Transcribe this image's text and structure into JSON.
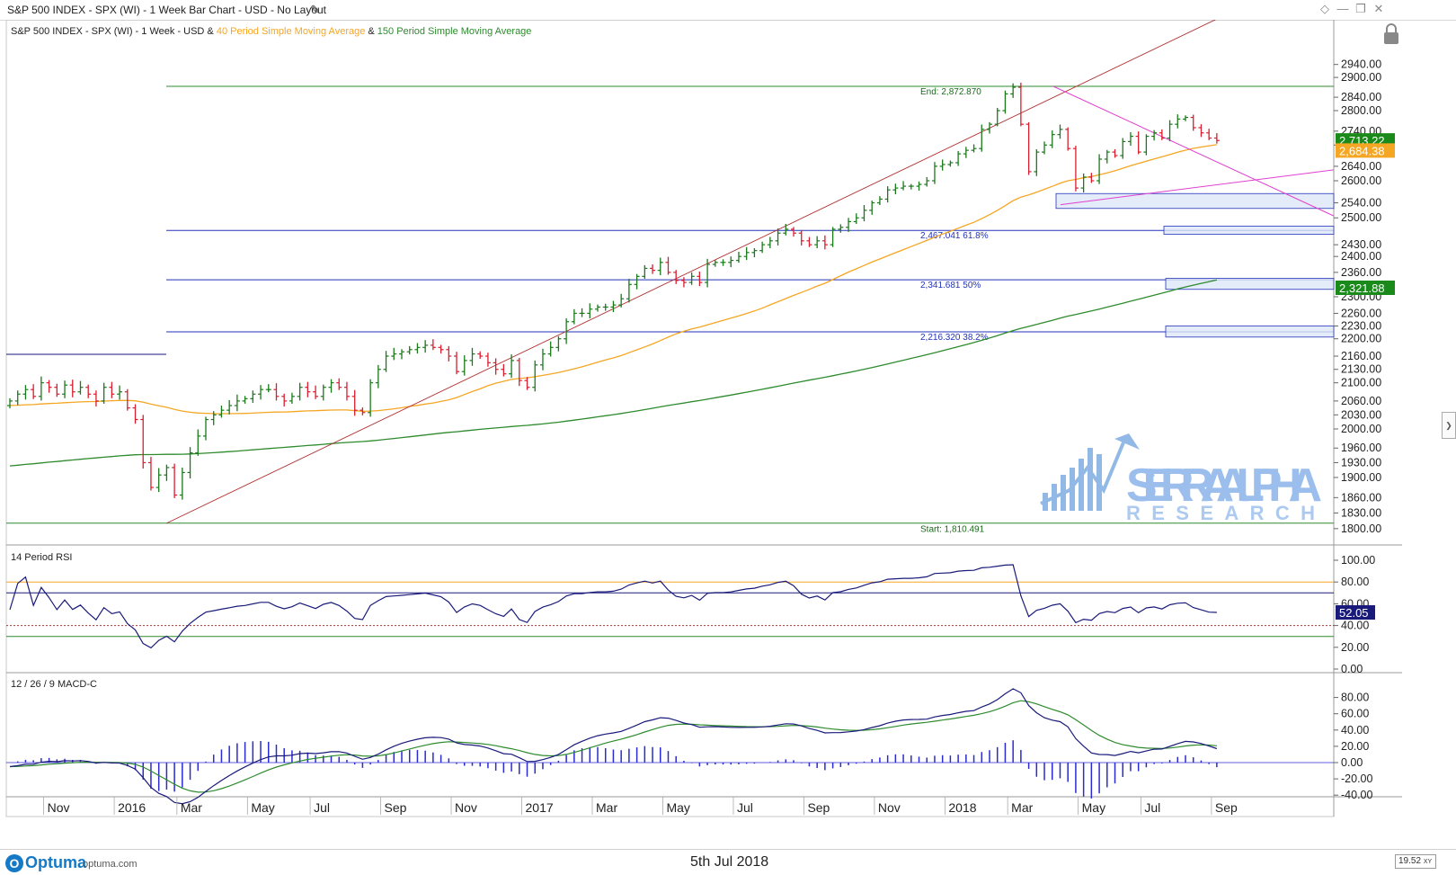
{
  "window": {
    "title": "S&P 500 INDEX - SPX (WI) - 1 Week Bar Chart - USD - No Layout",
    "footer_date": "5th Jul 2018",
    "logo_text": "Optuma",
    "logo_url": "optuma.com",
    "zoom": "19.52",
    "zoom_suffix": "XY"
  },
  "colors": {
    "up_bar": "#1a7a1a",
    "down_bar": "#d81e2e",
    "ma40": "#f5a623",
    "ma150": "#2e8b2e",
    "fib": "#2233bb",
    "trend_red": "#b03030",
    "trend_pink": "#e040d0",
    "rsi_line": "#1a1a7a",
    "macd_line": "#1a1a7a",
    "macd_signal": "#2e8b2e",
    "macd_hist": "#2a2ad0"
  },
  "chart_data": [
    {
      "type": "line",
      "panel": "price",
      "legend": {
        "prefix": "S&P 500 INDEX - SPX (WI) - 1 Week - USD & ",
        "ma40_label": "40 Period Simple Moving Average",
        "joiner": " & ",
        "ma150_label": "150 Period Simple Moving Average"
      },
      "y_ticks": [
        2940,
        2900,
        2840,
        2800,
        2740,
        2700,
        2640,
        2600,
        2540,
        2500,
        2430,
        2400,
        2360,
        2300,
        2260,
        2230,
        2200,
        2160,
        2130,
        2100,
        2060,
        2030,
        2000,
        1960,
        1930,
        1900,
        1860,
        1830,
        1800
      ],
      "y_tick_labels": [
        "2940.00",
        "2900.00",
        "2840.00",
        "2800.00",
        "2740.00",
        "2700.00",
        "2640.00",
        "2600.00",
        "2540.00",
        "2500.00",
        "2430.00",
        "2400.00",
        "2360.00",
        "2300.00",
        "2260.00",
        "2230.00",
        "2200.00",
        "2160.00",
        "2130.00",
        "2100.00",
        "2060.00",
        "2030.00",
        "2000.00",
        "1960.00",
        "1930.00",
        "1900.00",
        "1860.00",
        "1830.00",
        "1800.00"
      ],
      "x_axis": {
        "labels": [
          "Nov",
          "2016",
          "Mar",
          "May",
          "Jul",
          "Sep",
          "Nov",
          "2017",
          "Mar",
          "May",
          "Jul",
          "Sep",
          "Nov",
          "2018",
          "Mar",
          "May",
          "Jul",
          "Sep"
        ],
        "week_index": [
          5,
          14,
          22,
          31,
          39,
          48,
          57,
          66,
          75,
          84,
          93,
          102,
          111,
          120,
          128,
          137,
          145,
          154
        ]
      },
      "price_tags": [
        {
          "text": "2,713.22",
          "value": 2713.22,
          "bg": "#1a8a1a",
          "fg": "#ffffff"
        },
        {
          "text": "2,684.38",
          "value": 2684.38,
          "bg": "#f5a623",
          "fg": "#ffffff"
        },
        {
          "text": "2,321.88",
          "value": 2321.88,
          "bg": "#1a8a1a",
          "fg": "#ffffff"
        }
      ],
      "levels": {
        "end": {
          "label": "End:",
          "value_text": "2,872.870",
          "value": 2872.87
        },
        "start": {
          "label": "Start:",
          "value_text": "1,810.491",
          "value": 1810.491
        },
        "fib": [
          {
            "value": 2467.041,
            "value_text": "2,467.041",
            "pct": "61.8%"
          },
          {
            "value": 2341.681,
            "value_text": "2,341.681",
            "pct": "50%"
          },
          {
            "value": 2216.32,
            "value_text": "2,216.320",
            "pct": "38.2%"
          }
        ]
      },
      "zones": [
        {
          "from": 2525,
          "to": 2565
        },
        {
          "from": 2457,
          "to": 2478
        },
        {
          "from": 2318,
          "to": 2345
        },
        {
          "from": 2204,
          "to": 2230
        }
      ],
      "weekly_close": [
        2060,
        2075,
        2085,
        2070,
        2100,
        2090,
        2075,
        2095,
        2080,
        2090,
        2075,
        2060,
        2090,
        2075,
        2080,
        2045,
        2020,
        1930,
        1880,
        1905,
        1920,
        1865,
        1910,
        1950,
        1985,
        2020,
        2030,
        2040,
        2050,
        2060,
        2065,
        2075,
        2085,
        2085,
        2070,
        2060,
        2070,
        2090,
        2080,
        2070,
        2090,
        2100,
        2090,
        2070,
        2040,
        2035,
        2100,
        2130,
        2160,
        2165,
        2170,
        2175,
        2180,
        2185,
        2180,
        2175,
        2160,
        2125,
        2150,
        2165,
        2160,
        2145,
        2130,
        2120,
        2150,
        2105,
        2090,
        2140,
        2165,
        2180,
        2200,
        2240,
        2260,
        2260,
        2270,
        2275,
        2275,
        2280,
        2295,
        2330,
        2350,
        2370,
        2365,
        2385,
        2360,
        2340,
        2335,
        2350,
        2335,
        2380,
        2385,
        2385,
        2390,
        2400,
        2410,
        2415,
        2430,
        2440,
        2460,
        2470,
        2460,
        2440,
        2430,
        2440,
        2430,
        2470,
        2475,
        2490,
        2500,
        2520,
        2540,
        2550,
        2575,
        2580,
        2585,
        2585,
        2590,
        2600,
        2640,
        2645,
        2650,
        2675,
        2685,
        2690,
        2745,
        2760,
        2800,
        2850,
        2870,
        2760,
        2625,
        2680,
        2700,
        2730,
        2745,
        2690,
        2580,
        2610,
        2600,
        2660,
        2680,
        2670,
        2710,
        2725,
        2680,
        2725,
        2735,
        2720,
        2760,
        2775,
        2780,
        2750,
        2735,
        2720,
        2713
      ]
    },
    {
      "type": "line",
      "panel": "rsi",
      "title": "14 Period RSI",
      "y_ticks": [
        100,
        80,
        60,
        40,
        20,
        0
      ],
      "y_tick_labels": [
        "100.00",
        "80.00",
        "60.00",
        "40.00",
        "20.00",
        "0.00"
      ],
      "reference_lines": [
        80,
        70,
        40,
        30
      ],
      "last_value": 52.05,
      "last_value_text": "52.05"
    },
    {
      "type": "line",
      "panel": "macd",
      "title": "12 / 26 / 9 MACD-C",
      "y_ticks": [
        80,
        60,
        40,
        20,
        0,
        -20,
        -40
      ],
      "y_tick_labels": [
        "80.00",
        "60.00",
        "40.00",
        "20.00",
        "0.00",
        "-20.00",
        "-40.00"
      ],
      "series": [
        {
          "name": "MACD"
        },
        {
          "name": "Signal"
        },
        {
          "name": "Histogram"
        }
      ]
    }
  ]
}
